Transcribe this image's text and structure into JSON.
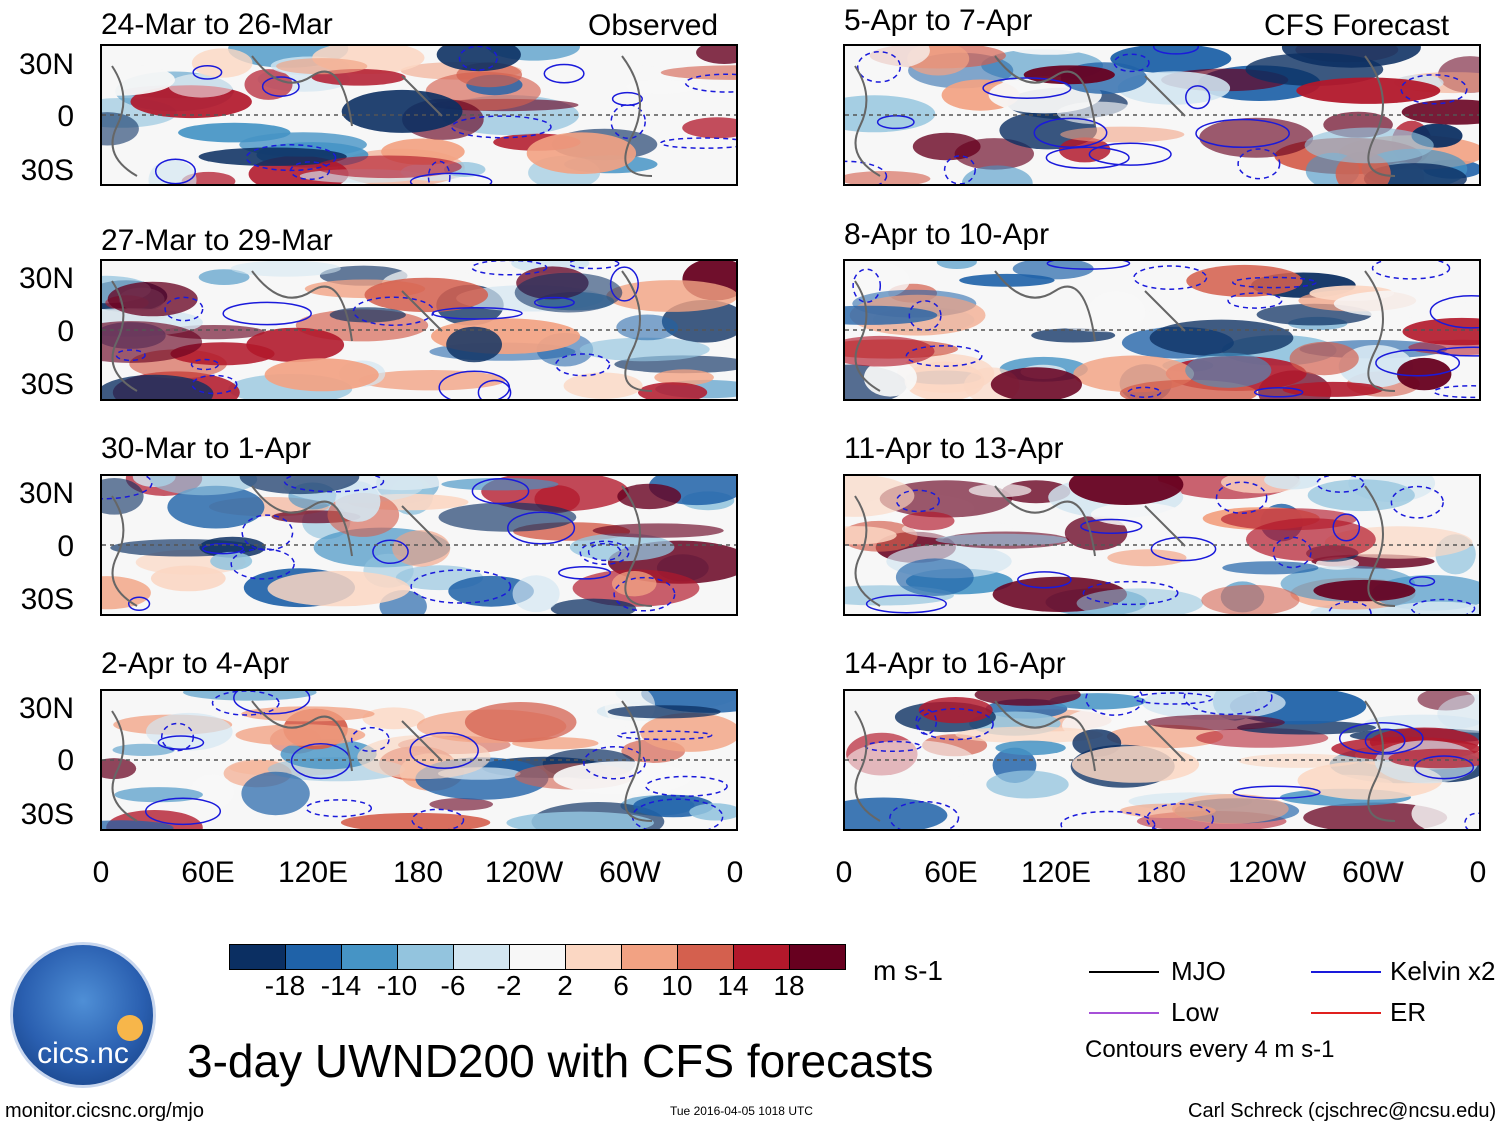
{
  "title": "3-day UWND200 with CFS forecasts",
  "left_column_label": "Observed",
  "right_column_label": "CFS Forecast",
  "panels_left": [
    "24-Mar to 26-Mar",
    "27-Mar to 29-Mar",
    "30-Mar to 1-Apr",
    "2-Apr to 4-Apr"
  ],
  "panels_right": [
    "5-Apr to 7-Apr",
    "8-Apr to 10-Apr",
    "11-Apr to 13-Apr",
    "14-Apr to 16-Apr"
  ],
  "lat_ticks": [
    "30N",
    "0",
    "30S"
  ],
  "lon_ticks": [
    "0",
    "60E",
    "120E",
    "180",
    "120W",
    "60W",
    "0"
  ],
  "colorbar": {
    "colors": [
      "#0b2f62",
      "#1f62a8",
      "#4694c5",
      "#93c4de",
      "#d3e6f1",
      "#f7f7f7",
      "#fbd7c3",
      "#f2a283",
      "#d4604e",
      "#b2182b",
      "#67001f"
    ],
    "labels": [
      "-18",
      "-14",
      "-10",
      "-6",
      "-2",
      "2",
      "6",
      "10",
      "14",
      "18"
    ],
    "units": "m s-1"
  },
  "legend": {
    "items": [
      {
        "label": "MJO",
        "color": "#000000"
      },
      {
        "label": "Kelvin x2",
        "color": "#1a1adb"
      },
      {
        "label": "Low",
        "color": "#a650d8"
      },
      {
        "label": "ER",
        "color": "#e0201e"
      }
    ],
    "note": "Contours every 4 m s-1"
  },
  "logo_text": "cics.nc",
  "footer": {
    "url": "monitor.cicsnc.org/mjo",
    "timestamp": "Tue 2016-04-05 1018 UTC",
    "author": "Carl Schreck (cjschrec@ncsu.edu)"
  }
}
